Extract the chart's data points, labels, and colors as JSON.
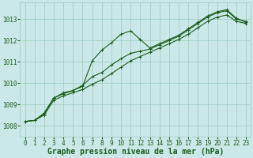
{
  "xlabel": "Graphe pression niveau de la mer (hPa)",
  "ylim": [
    1007.5,
    1013.8
  ],
  "xlim": [
    -0.5,
    23.5
  ],
  "yticks": [
    1008,
    1009,
    1010,
    1011,
    1012,
    1013
  ],
  "xticks": [
    0,
    1,
    2,
    3,
    4,
    5,
    6,
    7,
    8,
    9,
    10,
    11,
    12,
    13,
    14,
    15,
    16,
    17,
    18,
    19,
    20,
    21,
    22,
    23
  ],
  "bg_color": "#cbe8e8",
  "grid_color": "#99ccbb",
  "line_color": "#1a5c1a",
  "series1": [
    1008.2,
    1008.25,
    1008.6,
    1009.3,
    1009.55,
    1009.65,
    1009.85,
    1011.05,
    1011.55,
    1011.9,
    1012.3,
    1012.45,
    1012.05,
    1011.65,
    1011.85,
    1012.05,
    1012.25,
    1012.55,
    1012.85,
    1013.15,
    1013.35,
    1013.45,
    1013.05,
    1012.85
  ],
  "series2": [
    1008.2,
    1008.25,
    1008.55,
    1009.3,
    1009.5,
    1009.65,
    1009.9,
    1010.3,
    1010.5,
    1010.85,
    1011.15,
    1011.4,
    1011.5,
    1011.6,
    1011.8,
    1012.0,
    1012.2,
    1012.5,
    1012.8,
    1013.1,
    1013.3,
    1013.4,
    1013.0,
    1012.9
  ],
  "series3": [
    1008.2,
    1008.25,
    1008.5,
    1009.2,
    1009.4,
    1009.55,
    1009.7,
    1009.95,
    1010.15,
    1010.45,
    1010.75,
    1011.05,
    1011.25,
    1011.45,
    1011.65,
    1011.85,
    1012.05,
    1012.3,
    1012.6,
    1012.9,
    1013.1,
    1013.2,
    1012.9,
    1012.8
  ],
  "marker": "+",
  "markersize": 3,
  "markeredgewidth": 0.7,
  "linewidth": 0.8,
  "tick_fontsize": 5.5,
  "label_fontsize": 7,
  "tick_color": "#1a5c1a",
  "label_color": "#1a5c1a"
}
